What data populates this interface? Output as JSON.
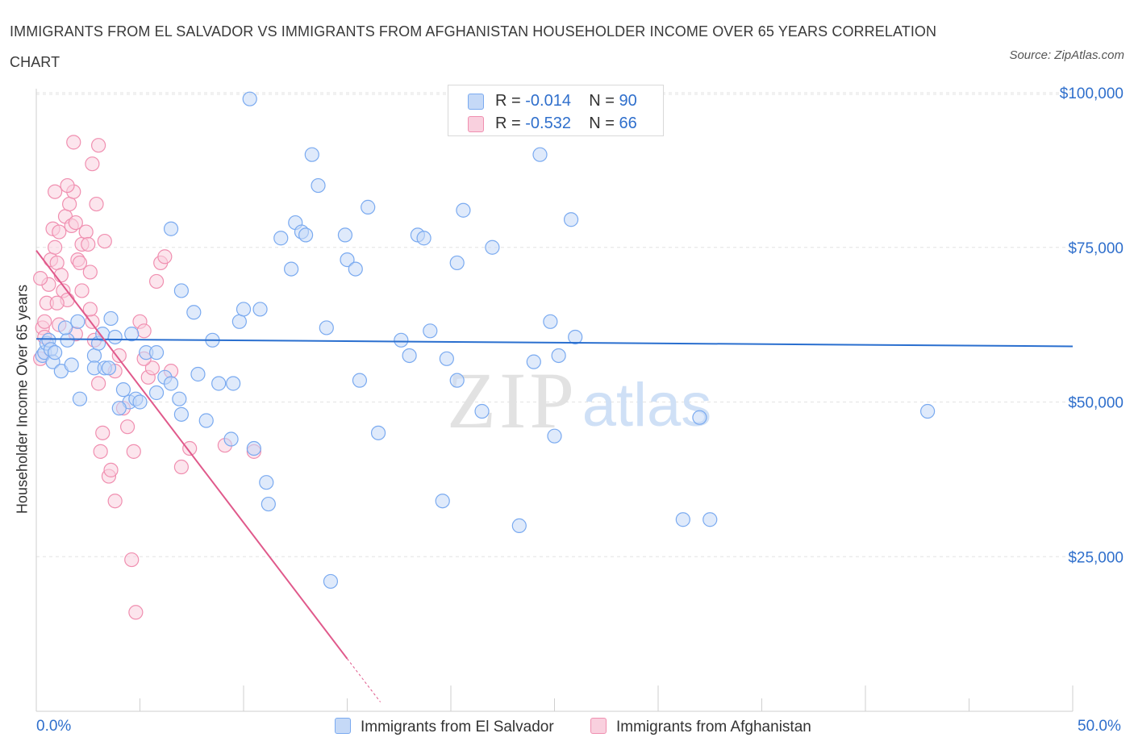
{
  "title": "IMMIGRANTS FROM EL SALVADOR VS IMMIGRANTS FROM AFGHANISTAN HOUSEHOLDER INCOME OVER 65 YEARS CORRELATION CHART",
  "source": "Source: ZipAtlas.com",
  "watermark": {
    "zip": "ZIP",
    "atlas": "atlas"
  },
  "colors": {
    "blue": "#7aaaf0",
    "blue_fill": "#c5d9f7",
    "blue_line": "#2a6fcf",
    "pink": "#f08fb0",
    "pink_fill": "#f9d0de",
    "pink_line": "#e0598b",
    "axis_text": "#2f6fcc",
    "grid": "#e3e3e3"
  },
  "legend": {
    "series1": {
      "r_label": "R = ",
      "r_value": "-0.014",
      "n_label": "N = ",
      "n_value": "90"
    },
    "series2": {
      "r_label": "R = ",
      "r_value": "-0.532",
      "n_label": "N = ",
      "n_value": "66"
    }
  },
  "chart_data": {
    "type": "scatter",
    "title": "IMMIGRANTS FROM EL SALVADOR VS IMMIGRANTS FROM AFGHANISTAN HOUSEHOLDER INCOME OVER 65 YEARS CORRELATION CHART",
    "xlabel": "",
    "ylabel": "Householder Income Over 65 years",
    "xlim": [
      0,
      50
    ],
    "ylim": [
      0,
      100000
    ],
    "x_tick_labels": [
      "0.0%",
      "50.0%"
    ],
    "y_ticks": [
      25000,
      50000,
      75000,
      100000
    ],
    "y_tick_labels": [
      "$25,000",
      "$50,000",
      "$75,000",
      "$100,000"
    ],
    "grid": true,
    "legend_position": "bottom",
    "series": [
      {
        "name": "Immigrants from El Salvador",
        "color": "#7aaaf0",
        "r": -0.014,
        "n": 90,
        "trend": {
          "x": [
            0,
            50
          ],
          "y": [
            60200,
            59000
          ]
        },
        "points": [
          [
            0.3,
            57500
          ],
          [
            0.4,
            58000
          ],
          [
            0.5,
            59500
          ],
          [
            0.6,
            60000
          ],
          [
            0.7,
            58500
          ],
          [
            0.8,
            56500
          ],
          [
            0.9,
            58000
          ],
          [
            1.2,
            55000
          ],
          [
            1.5,
            60000
          ],
          [
            1.7,
            56000
          ],
          [
            1.4,
            62000
          ],
          [
            2.0,
            63000
          ],
          [
            2.1,
            50500
          ],
          [
            2.8,
            57500
          ],
          [
            2.8,
            55500
          ],
          [
            3.0,
            59500
          ],
          [
            3.2,
            61000
          ],
          [
            3.3,
            55500
          ],
          [
            3.5,
            55500
          ],
          [
            3.6,
            63500
          ],
          [
            3.8,
            60500
          ],
          [
            4.2,
            52000
          ],
          [
            4.5,
            50000
          ],
          [
            4.8,
            50500
          ],
          [
            5.0,
            50000
          ],
          [
            4.6,
            61000
          ],
          [
            5.3,
            58000
          ],
          [
            5.8,
            58000
          ],
          [
            5.8,
            51500
          ],
          [
            6.2,
            54000
          ],
          [
            6.5,
            53000
          ],
          [
            6.9,
            50500
          ],
          [
            7.0,
            48000
          ],
          [
            7.6,
            64500
          ],
          [
            7.8,
            54500
          ],
          [
            8.2,
            47000
          ],
          [
            8.5,
            60000
          ],
          [
            8.8,
            53000
          ],
          [
            9.4,
            44000
          ],
          [
            9.5,
            53000
          ],
          [
            9.8,
            63000
          ],
          [
            10.0,
            65000
          ],
          [
            10.5,
            42500
          ],
          [
            10.8,
            65000
          ],
          [
            11.1,
            37000
          ],
          [
            11.2,
            33500
          ],
          [
            11.8,
            76500
          ],
          [
            12.3,
            71500
          ],
          [
            12.5,
            79000
          ],
          [
            12.8,
            77500
          ],
          [
            13.0,
            77000
          ],
          [
            13.3,
            90000
          ],
          [
            13.6,
            85000
          ],
          [
            14.0,
            62000
          ],
          [
            14.2,
            21000
          ],
          [
            14.9,
            77000
          ],
          [
            15.0,
            73000
          ],
          [
            15.4,
            71500
          ],
          [
            15.6,
            53500
          ],
          [
            16.0,
            81500
          ],
          [
            16.5,
            45000
          ],
          [
            17.6,
            60000
          ],
          [
            18.0,
            57500
          ],
          [
            18.4,
            77000
          ],
          [
            18.7,
            76500
          ],
          [
            19.0,
            61500
          ],
          [
            19.6,
            34000
          ],
          [
            19.8,
            57000
          ],
          [
            20.3,
            53500
          ],
          [
            20.3,
            72500
          ],
          [
            20.6,
            81000
          ],
          [
            21.5,
            48500
          ],
          [
            21.6,
            99000
          ],
          [
            22.0,
            75000
          ],
          [
            23.3,
            30000
          ],
          [
            24.0,
            56500
          ],
          [
            24.3,
            90000
          ],
          [
            24.8,
            63000
          ],
          [
            25.0,
            44500
          ],
          [
            25.2,
            57500
          ],
          [
            25.8,
            79500
          ],
          [
            26.0,
            60500
          ],
          [
            31.2,
            31000
          ],
          [
            32.0,
            47500
          ],
          [
            32.5,
            31000
          ],
          [
            6.5,
            78000
          ],
          [
            10.3,
            99000
          ],
          [
            7.0,
            68000
          ],
          [
            4.0,
            49000
          ],
          [
            43.0,
            48500
          ]
        ]
      },
      {
        "name": "Immigrants from Afghanistan",
        "color": "#f08fb0",
        "r": -0.532,
        "n": 66,
        "trend": {
          "x": [
            0,
            15
          ],
          "y": [
            74500,
            8500
          ]
        },
        "trend_dashed": {
          "x": [
            15,
            16.6
          ],
          "y": [
            8500,
            1500
          ]
        },
        "points": [
          [
            0.2,
            57000
          ],
          [
            0.3,
            62000
          ],
          [
            0.4,
            60500
          ],
          [
            0.5,
            66000
          ],
          [
            0.6,
            69000
          ],
          [
            0.7,
            73000
          ],
          [
            0.8,
            78000
          ],
          [
            0.9,
            75000
          ],
          [
            1.0,
            72500
          ],
          [
            1.1,
            77500
          ],
          [
            1.2,
            70500
          ],
          [
            1.3,
            68000
          ],
          [
            1.4,
            80000
          ],
          [
            1.5,
            66500
          ],
          [
            1.6,
            82000
          ],
          [
            1.7,
            78500
          ],
          [
            1.8,
            84000
          ],
          [
            1.9,
            79000
          ],
          [
            2.0,
            73000
          ],
          [
            2.1,
            72500
          ],
          [
            2.2,
            75500
          ],
          [
            2.4,
            77500
          ],
          [
            2.5,
            75500
          ],
          [
            2.6,
            71000
          ],
          [
            2.7,
            63000
          ],
          [
            2.8,
            60000
          ],
          [
            3.0,
            53000
          ],
          [
            3.1,
            42000
          ],
          [
            3.2,
            45000
          ],
          [
            3.5,
            38000
          ],
          [
            3.6,
            39000
          ],
          [
            3.8,
            34000
          ],
          [
            4.0,
            57500
          ],
          [
            4.2,
            49000
          ],
          [
            4.4,
            46000
          ],
          [
            4.6,
            24500
          ],
          [
            4.8,
            16000
          ],
          [
            5.0,
            63000
          ],
          [
            5.2,
            61500
          ],
          [
            5.4,
            54000
          ],
          [
            5.6,
            55500
          ],
          [
            5.8,
            69500
          ],
          [
            6.0,
            72500
          ],
          [
            6.2,
            73500
          ],
          [
            6.5,
            55000
          ],
          [
            7.0,
            39500
          ],
          [
            7.4,
            42500
          ],
          [
            2.7,
            88500
          ],
          [
            1.8,
            92000
          ],
          [
            3.0,
            91500
          ],
          [
            1.5,
            85000
          ],
          [
            2.9,
            82000
          ],
          [
            3.3,
            76000
          ],
          [
            1.9,
            61000
          ],
          [
            4.7,
            42000
          ],
          [
            5.2,
            57000
          ],
          [
            1.1,
            62500
          ],
          [
            0.4,
            63000
          ],
          [
            9.1,
            43000
          ],
          [
            10.5,
            42000
          ],
          [
            2.2,
            68000
          ],
          [
            0.9,
            84000
          ],
          [
            1.0,
            66000
          ],
          [
            0.2,
            70000
          ],
          [
            3.8,
            55000
          ],
          [
            2.6,
            65000
          ]
        ]
      }
    ]
  },
  "bottom_legend": {
    "series1": "Immigrants from El Salvador",
    "series2": "Immigrants from Afghanistan"
  },
  "x_axis": {
    "min_label": "0.0%",
    "max_label": "50.0%"
  }
}
